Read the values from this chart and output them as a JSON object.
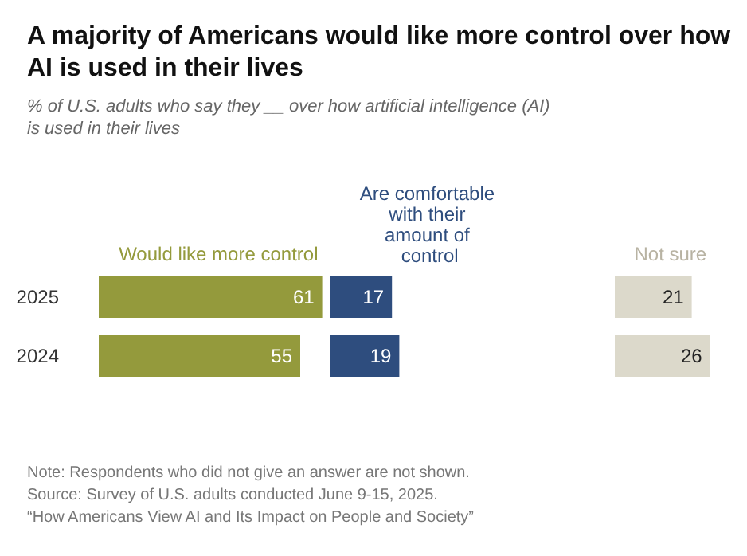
{
  "chart_data": [
    {
      "type": "bar",
      "orientation": "horizontal",
      "title": "A majority of Americans would like more control over how AI is used in their lives",
      "subtitle": "% of U.S. adults who say they __ over how artificial intelligence (AI) is used in their lives",
      "categories": [
        "2025",
        "2024"
      ],
      "series": [
        {
          "name": "Would like more control",
          "color": "#949a3c",
          "values": [
            61,
            55
          ]
        }
      ],
      "data_labels": true,
      "legend": "top",
      "annotations": [
        "Note: Respondents who did not give an answer are not shown.",
        "Source: Survey of U.S. adults conducted June 9-15, 2025.",
        "“How Americans View AI and Its Impact on People and Society”"
      ]
    },
    {
      "type": "bar",
      "orientation": "horizontal",
      "categories": [
        "2025",
        "2024"
      ],
      "tick_labels": false,
      "series": [
        {
          "name": "Are comfortable with their amount of control",
          "color": "#2e4d7e",
          "values": [
            17,
            19
          ]
        }
      ],
      "data_labels": true,
      "legend": "top"
    },
    {
      "type": "bar",
      "orientation": "horizontal",
      "categories": [
        "2025",
        "2024"
      ],
      "tick_labels": false,
      "series": [
        {
          "name": "Not sure",
          "color": "#dcd9cb",
          "values": [
            21,
            26
          ]
        }
      ],
      "data_labels": true,
      "legend": "top"
    }
  ]
}
